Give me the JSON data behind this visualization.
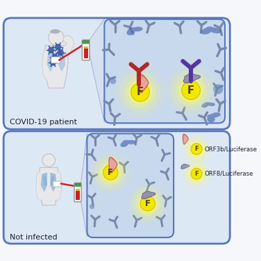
{
  "bg_color": "#f5f7fa",
  "panel_bg_top": "#dde8f5",
  "panel_bg_bot": "#dde8f5",
  "inner_box_bg": "#c8d8ed",
  "inner_box_border": "#5575bb",
  "panel_border": "#5575bb",
  "title1": "COVID-19 patient",
  "title2": "Not infected",
  "legend1": "ORF3b/Luciferase",
  "legend2": "ORF8/Luciferase",
  "ab_color_red": "#b02828",
  "ab_color_purple": "#5535a0",
  "ab_color_gray": "#7888aa",
  "orf3b_color_top": "#e06030",
  "orf3b_color_bot": "#e8a0a0",
  "orf8_color": "#8888aa",
  "glow_yellow": "#ffff60",
  "glow_pale": "#fffff0",
  "f_color": "#f0e800",
  "f_text": "F",
  "virus_color": "#4060a8",
  "lung_color": "#a0c0e0",
  "blood_red": "#cc2020",
  "blood_yellow": "#ddbb20",
  "blood_green": "#40a040",
  "body_color": "#e8e8ea",
  "body_edge": "#c0c0c8"
}
